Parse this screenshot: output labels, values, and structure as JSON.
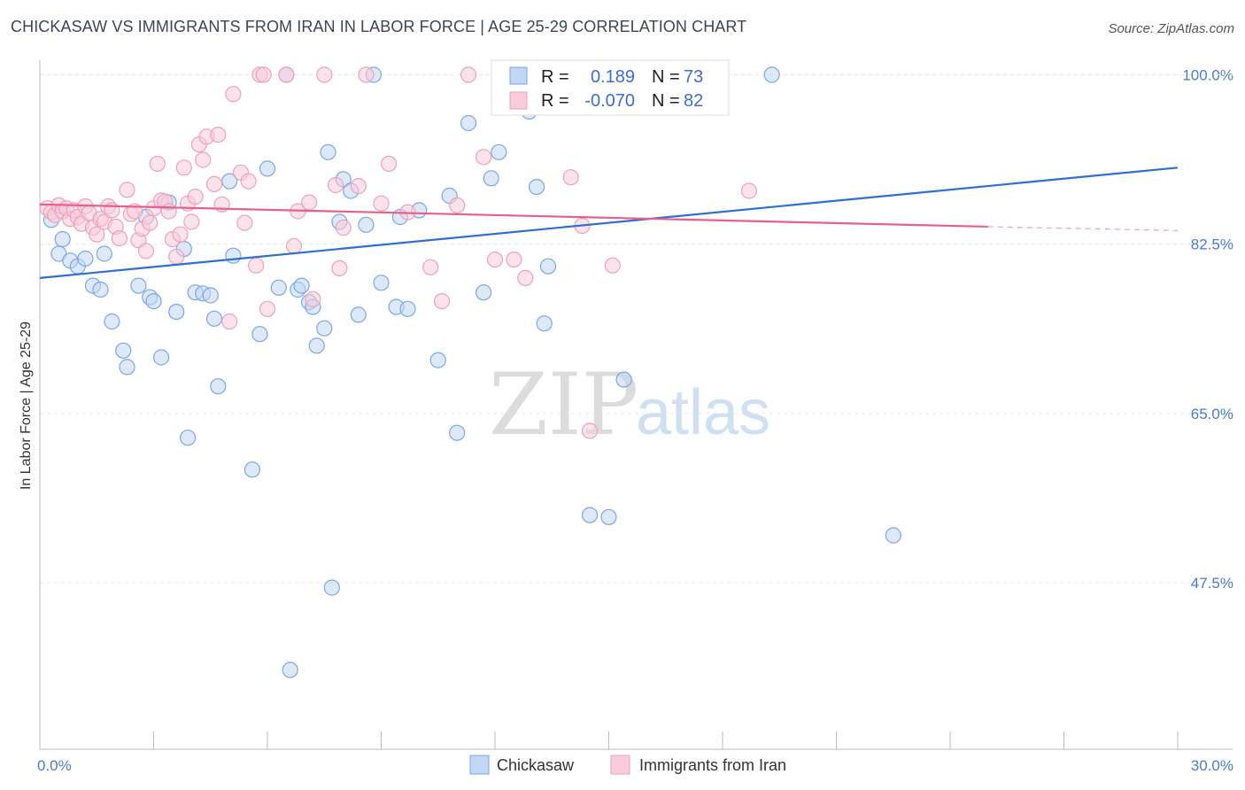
{
  "title": "CHICKASAW VS IMMIGRANTS FROM IRAN IN LABOR FORCE | AGE 25-29 CORRELATION CHART",
  "source": "Source: ZipAtlas.com",
  "watermark": {
    "zip": "ZIP",
    "atlas": "atlas"
  },
  "chart_data": {
    "type": "scatter",
    "ylabel": "In Labor Force | Age 25-29",
    "x_tick_labels": [
      "0.0%",
      "30.0%"
    ],
    "y_tick_labels": [
      "100.0%",
      "82.5%",
      "65.0%",
      "47.5%"
    ],
    "y_ticks": [
      100.0,
      82.5,
      65.0,
      47.5
    ],
    "xlim": [
      0,
      30
    ],
    "ylim": [
      30.3,
      101.5
    ],
    "grid": true,
    "legend_position": "top-center",
    "legend": {
      "r_label": "R =",
      "n_label": "N =",
      "entries": [
        {
          "r": "0.189",
          "n": "73"
        },
        {
          "r": "-0.070",
          "n": "82"
        }
      ]
    },
    "series": [
      {
        "name": "Chickasaw",
        "color": "#7aa7e6",
        "fill": "#c2d7f3",
        "line_color": "#2e6fd0",
        "trend": {
          "x0": 0,
          "y0": 79.0,
          "x1": 30,
          "y1": 90.4
        },
        "points": [
          [
            0.3,
            85.0
          ],
          [
            0.6,
            83.0
          ],
          [
            0.5,
            81.5
          ],
          [
            0.8,
            80.8
          ],
          [
            1.0,
            80.2
          ],
          [
            1.2,
            81.0
          ],
          [
            1.4,
            78.2
          ],
          [
            1.6,
            77.8
          ],
          [
            1.7,
            81.5
          ],
          [
            1.9,
            74.5
          ],
          [
            2.2,
            71.5
          ],
          [
            2.3,
            69.8
          ],
          [
            2.6,
            78.2
          ],
          [
            2.8,
            85.3
          ],
          [
            2.9,
            77.0
          ],
          [
            3.0,
            76.6
          ],
          [
            3.2,
            70.8
          ],
          [
            3.4,
            86.8
          ],
          [
            3.6,
            75.5
          ],
          [
            3.8,
            82.0
          ],
          [
            3.9,
            62.5
          ],
          [
            4.1,
            77.5
          ],
          [
            4.3,
            77.4
          ],
          [
            4.5,
            77.2
          ],
          [
            4.6,
            74.8
          ],
          [
            4.7,
            67.8
          ],
          [
            5.0,
            89.0
          ],
          [
            5.1,
            81.3
          ],
          [
            5.6,
            59.2
          ],
          [
            5.8,
            73.2
          ],
          [
            6.0,
            90.3
          ],
          [
            6.3,
            78.0
          ],
          [
            6.5,
            100.0
          ],
          [
            6.6,
            38.5
          ],
          [
            6.8,
            77.8
          ],
          [
            6.9,
            78.2
          ],
          [
            7.1,
            76.5
          ],
          [
            7.2,
            76.0
          ],
          [
            7.3,
            72.0
          ],
          [
            7.5,
            73.8
          ],
          [
            7.6,
            92.0
          ],
          [
            7.7,
            47.0
          ],
          [
            7.9,
            84.8
          ],
          [
            8.0,
            89.2
          ],
          [
            8.2,
            88.0
          ],
          [
            8.4,
            75.2
          ],
          [
            8.6,
            84.5
          ],
          [
            8.8,
            100.0
          ],
          [
            9.0,
            78.5
          ],
          [
            9.4,
            76.0
          ],
          [
            9.5,
            85.3
          ],
          [
            9.7,
            75.8
          ],
          [
            10.0,
            86.0
          ],
          [
            10.5,
            70.5
          ],
          [
            10.8,
            87.5
          ],
          [
            11.0,
            63.0
          ],
          [
            11.3,
            95.0
          ],
          [
            11.7,
            77.5
          ],
          [
            11.9,
            89.3
          ],
          [
            12.1,
            92.0
          ],
          [
            12.3,
            100.0
          ],
          [
            12.9,
            96.2
          ],
          [
            13.1,
            88.4
          ],
          [
            13.3,
            74.3
          ],
          [
            13.4,
            80.2
          ],
          [
            14.5,
            54.5
          ],
          [
            15.0,
            54.3
          ],
          [
            15.4,
            68.5
          ],
          [
            16.4,
            100.0
          ],
          [
            17.3,
            100.0
          ],
          [
            17.6,
            100.0
          ],
          [
            19.3,
            100.0
          ],
          [
            22.5,
            52.4
          ]
        ]
      },
      {
        "name": "Immigrants from Iran",
        "color": "#f0a0bb",
        "fill": "#f8ccdb",
        "line_color": "#e8608a",
        "trend": {
          "x0": 0,
          "y0": 86.6,
          "x1": 25.0,
          "y1": 84.3
        },
        "trend_dash_end": {
          "x": 30,
          "y": 83.9
        },
        "points": [
          [
            0.2,
            86.2
          ],
          [
            0.3,
            85.8
          ],
          [
            0.4,
            85.5
          ],
          [
            0.5,
            86.5
          ],
          [
            0.6,
            85.9
          ],
          [
            0.7,
            86.2
          ],
          [
            0.8,
            85.1
          ],
          [
            0.9,
            86.0
          ],
          [
            1.0,
            85.3
          ],
          [
            1.1,
            84.6
          ],
          [
            1.2,
            86.4
          ],
          [
            1.3,
            85.7
          ],
          [
            1.4,
            84.2
          ],
          [
            1.5,
            83.5
          ],
          [
            1.6,
            85.1
          ],
          [
            1.7,
            84.8
          ],
          [
            1.8,
            86.4
          ],
          [
            1.9,
            86.0
          ],
          [
            2.0,
            84.3
          ],
          [
            2.1,
            83.1
          ],
          [
            2.3,
            88.1
          ],
          [
            2.4,
            85.6
          ],
          [
            2.5,
            85.9
          ],
          [
            2.6,
            82.9
          ],
          [
            2.7,
            84.1
          ],
          [
            2.8,
            81.8
          ],
          [
            2.9,
            84.7
          ],
          [
            3.0,
            86.2
          ],
          [
            3.1,
            90.8
          ],
          [
            3.2,
            87.0
          ],
          [
            3.3,
            86.9
          ],
          [
            3.4,
            85.9
          ],
          [
            3.5,
            83.0
          ],
          [
            3.6,
            81.2
          ],
          [
            3.7,
            83.5
          ],
          [
            3.8,
            90.4
          ],
          [
            3.9,
            86.7
          ],
          [
            4.0,
            84.8
          ],
          [
            4.1,
            87.4
          ],
          [
            4.2,
            92.8
          ],
          [
            4.3,
            91.2
          ],
          [
            4.4,
            93.6
          ],
          [
            4.6,
            88.7
          ],
          [
            4.7,
            93.8
          ],
          [
            4.8,
            86.6
          ],
          [
            5.0,
            74.5
          ],
          [
            5.1,
            98.0
          ],
          [
            5.3,
            89.9
          ],
          [
            5.4,
            84.7
          ],
          [
            5.5,
            89.0
          ],
          [
            5.7,
            80.3
          ],
          [
            5.8,
            100.0
          ],
          [
            5.9,
            100.0
          ],
          [
            6.0,
            75.8
          ],
          [
            6.5,
            100.0
          ],
          [
            6.7,
            82.3
          ],
          [
            6.8,
            85.9
          ],
          [
            7.1,
            86.8
          ],
          [
            7.2,
            76.8
          ],
          [
            7.5,
            100.0
          ],
          [
            7.8,
            88.6
          ],
          [
            7.9,
            80.0
          ],
          [
            8.0,
            84.2
          ],
          [
            8.4,
            88.5
          ],
          [
            8.6,
            100.0
          ],
          [
            9.0,
            86.7
          ],
          [
            9.2,
            90.8
          ],
          [
            9.7,
            85.8
          ],
          [
            10.3,
            80.1
          ],
          [
            10.6,
            76.6
          ],
          [
            11.0,
            86.5
          ],
          [
            11.3,
            100.0
          ],
          [
            11.7,
            91.5
          ],
          [
            12.0,
            80.9
          ],
          [
            12.5,
            80.9
          ],
          [
            12.8,
            79.0
          ],
          [
            14.0,
            89.4
          ],
          [
            14.3,
            84.4
          ],
          [
            14.5,
            63.2
          ],
          [
            15.1,
            80.3
          ],
          [
            16.4,
            100.0
          ],
          [
            18.7,
            88.0
          ]
        ]
      }
    ]
  }
}
